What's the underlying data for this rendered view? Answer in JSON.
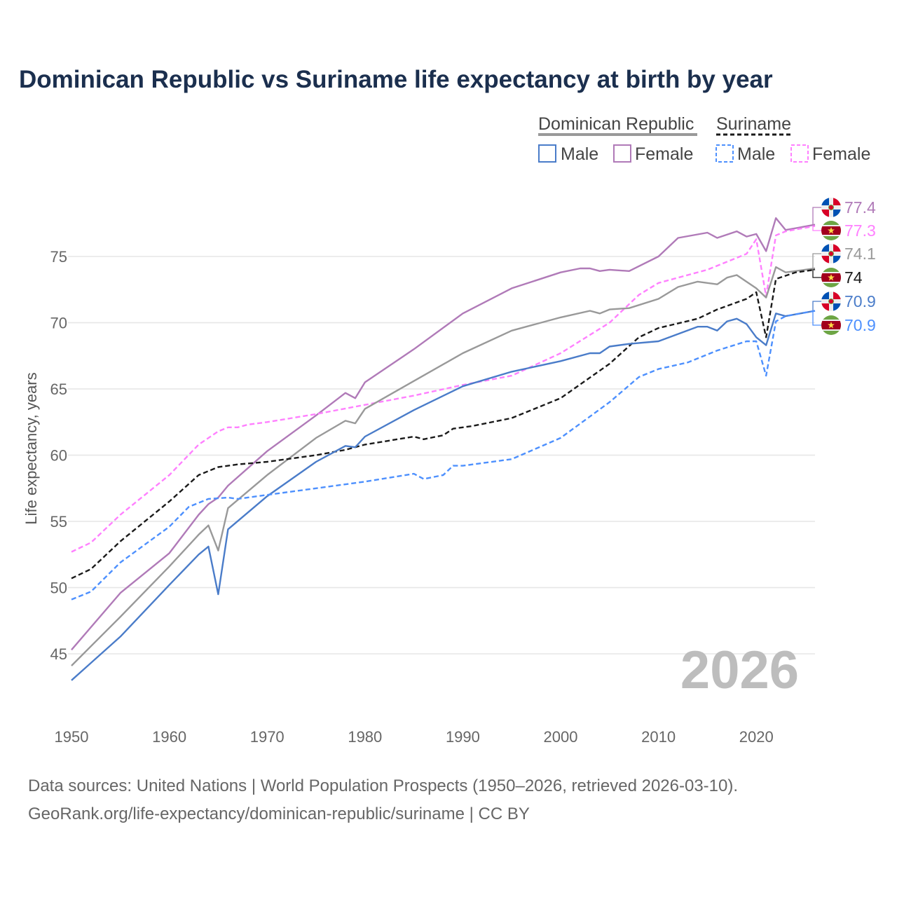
{
  "chart_data": {
    "type": "line",
    "title": "Dominican Republic vs Suriname life expectancy at birth by year",
    "xlabel": "",
    "ylabel": "Life expectancy, years",
    "xlim": [
      1950,
      2026
    ],
    "ylim": [
      41,
      79
    ],
    "x_ticks": [
      1950,
      1960,
      1970,
      1980,
      1990,
      2000,
      2010,
      2020
    ],
    "y_ticks": [
      45,
      50,
      55,
      60,
      65,
      70,
      75
    ],
    "grid": true,
    "legend": {
      "placement": "top-right",
      "groups": [
        {
          "name": "Dominican Republic",
          "items": [
            "Male",
            "Female"
          ]
        },
        {
          "name": "Suriname",
          "items": [
            "Male",
            "Female"
          ]
        }
      ]
    },
    "watermark": "2026",
    "series": [
      {
        "name": "Dominican Republic Female",
        "color": "#b07ab8",
        "dash": false,
        "end_label": "77.4",
        "flag": "dominican-republic",
        "x": [
          1950,
          1955,
          1960,
          1963,
          1964,
          1965,
          1966,
          1970,
          1975,
          1978,
          1979,
          1980,
          1985,
          1990,
          1995,
          2000,
          2002,
          2003,
          2004,
          2005,
          2007,
          2010,
          2012,
          2015,
          2016,
          2018,
          2019,
          2020,
          2021,
          2022,
          2023,
          2026
        ],
        "y": [
          45.3,
          49.6,
          52.6,
          55.5,
          56.3,
          56.8,
          57.7,
          60.3,
          63.0,
          64.7,
          64.3,
          65.5,
          68.0,
          70.7,
          72.6,
          73.8,
          74.1,
          74.1,
          73.9,
          74.0,
          73.9,
          75.0,
          76.4,
          76.8,
          76.4,
          76.9,
          76.5,
          76.7,
          75.4,
          77.9,
          77.0,
          77.4
        ]
      },
      {
        "name": "Suriname Female",
        "color": "#ff80ff",
        "dash": true,
        "end_label": "77.3",
        "flag": "suriname",
        "x": [
          1950,
          1952,
          1955,
          1960,
          1963,
          1965,
          1966,
          1967,
          1968,
          1970,
          1975,
          1980,
          1985,
          1990,
          1995,
          2000,
          2005,
          2008,
          2010,
          2015,
          2019,
          2020,
          2021,
          2022,
          2023,
          2026
        ],
        "y": [
          52.7,
          53.4,
          55.5,
          58.5,
          60.8,
          61.8,
          62.1,
          62.1,
          62.3,
          62.5,
          63.1,
          63.8,
          64.5,
          65.3,
          66.0,
          67.7,
          70.0,
          72.1,
          73.0,
          74.0,
          75.2,
          76.3,
          72.0,
          76.6,
          76.9,
          77.3
        ]
      },
      {
        "name": "Dominican Republic Total",
        "color": "#999999",
        "dash": false,
        "end_label": "74.1",
        "flag": "dominican-republic",
        "x": [
          1950,
          1955,
          1960,
          1963,
          1964,
          1965,
          1966,
          1970,
          1975,
          1978,
          1979,
          1980,
          1985,
          1990,
          1995,
          2000,
          2003,
          2004,
          2005,
          2007,
          2010,
          2012,
          2014,
          2016,
          2017,
          2018,
          2020,
          2021,
          2022,
          2023,
          2026
        ],
        "y": [
          44.1,
          47.8,
          51.6,
          54.0,
          54.7,
          52.8,
          56.0,
          58.5,
          61.3,
          62.6,
          62.4,
          63.5,
          65.6,
          67.7,
          69.4,
          70.4,
          70.9,
          70.7,
          71.0,
          71.1,
          71.8,
          72.7,
          73.1,
          72.9,
          73.4,
          73.6,
          72.6,
          71.9,
          74.2,
          73.8,
          74.1
        ]
      },
      {
        "name": "Suriname Total",
        "color": "#1a1a1a",
        "dash": true,
        "end_label": "74",
        "flag": "suriname",
        "x": [
          1950,
          1952,
          1955,
          1960,
          1963,
          1965,
          1967,
          1970,
          1975,
          1978,
          1980,
          1985,
          1986,
          1988,
          1989,
          1991,
          1995,
          2000,
          2005,
          2008,
          2010,
          2014,
          2016,
          2019,
          2020,
          2021,
          2022,
          2024,
          2026
        ],
        "y": [
          50.7,
          51.4,
          53.5,
          56.5,
          58.5,
          59.1,
          59.3,
          59.5,
          60.0,
          60.4,
          60.8,
          61.4,
          61.2,
          61.5,
          62.0,
          62.2,
          62.8,
          64.3,
          66.9,
          68.9,
          69.6,
          70.3,
          71.0,
          71.8,
          72.3,
          68.9,
          73.3,
          73.8,
          74.0
        ]
      },
      {
        "name": "Dominican Republic Male",
        "color": "#4a7cc9",
        "dash": false,
        "end_label": "70.9",
        "flag": "dominican-republic",
        "x": [
          1950,
          1955,
          1960,
          1963,
          1964,
          1965,
          1966,
          1970,
          1975,
          1978,
          1979,
          1980,
          1985,
          1990,
          1995,
          2000,
          2003,
          2004,
          2005,
          2007,
          2010,
          2014,
          2015,
          2016,
          2017,
          2018,
          2019,
          2020,
          2021,
          2022,
          2023,
          2026
        ],
        "y": [
          43.0,
          46.3,
          50.2,
          52.5,
          53.1,
          49.5,
          54.4,
          56.9,
          59.5,
          60.7,
          60.6,
          61.4,
          63.4,
          65.2,
          66.3,
          67.1,
          67.7,
          67.7,
          68.2,
          68.4,
          68.6,
          69.7,
          69.7,
          69.4,
          70.1,
          70.3,
          69.9,
          68.9,
          68.3,
          70.7,
          70.5,
          70.9
        ]
      },
      {
        "name": "Suriname Male",
        "color": "#4d90fe",
        "dash": true,
        "end_label": "70.9",
        "flag": "suriname",
        "x": [
          1950,
          1952,
          1955,
          1960,
          1962,
          1964,
          1966,
          1967,
          1970,
          1975,
          1980,
          1985,
          1986,
          1988,
          1989,
          1990,
          1995,
          2000,
          2005,
          2008,
          2010,
          2013,
          2016,
          2019,
          2020,
          2021,
          2022,
          2023,
          2026
        ],
        "y": [
          49.1,
          49.7,
          51.9,
          54.6,
          56.1,
          56.7,
          56.8,
          56.7,
          57.0,
          57.5,
          58.0,
          58.6,
          58.2,
          58.5,
          59.2,
          59.2,
          59.7,
          61.3,
          64.0,
          65.9,
          66.5,
          67.0,
          67.9,
          68.6,
          68.6,
          66.0,
          70.1,
          70.5,
          70.9
        ]
      }
    ]
  },
  "legend_labels": {
    "dr": "Dominican Republic",
    "sr": "Suriname",
    "male": "Male",
    "female": "Female"
  },
  "source": {
    "line1": "Data sources: United Nations | World Population Prospects (1950–2026, retrieved 2026-03-10).",
    "line2": "GeoRank.org/life-expectancy/dominican-republic/suriname | CC BY"
  }
}
